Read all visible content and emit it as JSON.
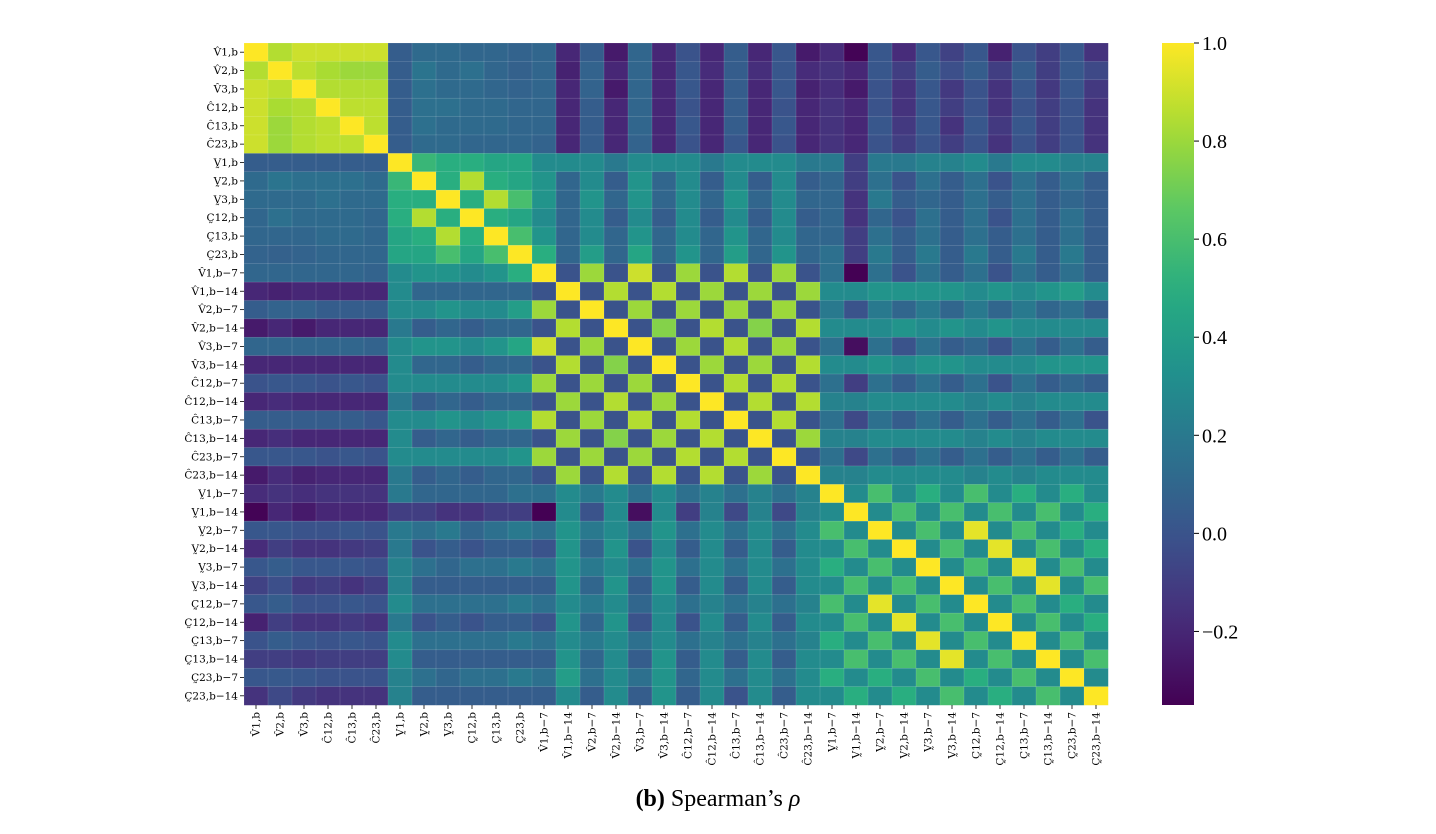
{
  "chart_data": {
    "type": "heatmap",
    "row_labels": [
      "V̂1,b",
      "V̂2,b",
      "V̂3,b",
      "Ĉ12,b",
      "Ĉ13,b",
      "Ĉ23,b",
      "V̰1,b",
      "V̰2,b",
      "V̰3,b",
      "C̰12,b",
      "C̰13,b",
      "C̰23,b",
      "V̂1,b−7",
      "V̂1,b−14",
      "V̂2,b−7",
      "V̂2,b−14",
      "V̂3,b−7",
      "V̂3,b−14",
      "Ĉ12,b−7",
      "Ĉ12,b−14",
      "Ĉ13,b−7",
      "Ĉ13,b−14",
      "Ĉ23,b−7",
      "Ĉ23,b−14",
      "V̰1,b−7",
      "V̰1,b−14",
      "V̰2,b−7",
      "V̰2,b−14",
      "V̰3,b−7",
      "V̰3,b−14",
      "C̰12,b−7",
      "C̰12,b−14",
      "C̰13,b−7",
      "C̰13,b−14",
      "C̰23,b−7",
      "C̰23,b−14"
    ],
    "col_labels": [
      "V̂1,b",
      "V̂2,b",
      "V̂3,b",
      "Ĉ12,b",
      "Ĉ13,b",
      "Ĉ23,b",
      "V̰1,b",
      "V̰2,b",
      "V̰3,b",
      "C̰12,b",
      "C̰13,b",
      "C̰23,b",
      "V̂1,b−7",
      "V̂1,b−14",
      "V̂2,b−7",
      "V̂2,b−14",
      "V̂3,b−7",
      "V̂3,b−14",
      "Ĉ12,b−7",
      "Ĉ12,b−14",
      "Ĉ13,b−7",
      "Ĉ13,b−14",
      "Ĉ23,b−7",
      "Ĉ23,b−14",
      "V̰1,b−7",
      "V̰1,b−14",
      "V̰2,b−7",
      "V̰2,b−14",
      "V̰3,b−7",
      "V̰3,b−14",
      "C̰12,b−7",
      "C̰12,b−14",
      "C̰13,b−7",
      "C̰13,b−14",
      "C̰23,b−7",
      "C̰23,b−14"
    ],
    "values": [
      [
        1.0,
        0.85,
        0.9,
        0.9,
        0.9,
        0.9,
        0.05,
        0.12,
        0.12,
        0.1,
        0.1,
        0.08,
        0.1,
        -0.2,
        0.05,
        -0.25,
        0.1,
        -0.2,
        0.0,
        -0.2,
        0.05,
        -0.2,
        0.02,
        -0.25,
        -0.18,
        -0.34,
        0.02,
        -0.18,
        0.02,
        -0.08,
        0.02,
        -0.22,
        0.0,
        -0.1,
        0.02,
        -0.15
      ],
      [
        0.85,
        1.0,
        0.87,
        0.83,
        0.8,
        0.8,
        0.05,
        0.17,
        0.12,
        0.15,
        0.1,
        0.07,
        0.1,
        -0.22,
        0.08,
        -0.2,
        0.1,
        -0.2,
        0.02,
        -0.18,
        0.05,
        -0.17,
        0.02,
        -0.18,
        -0.15,
        -0.2,
        0.02,
        -0.1,
        0.05,
        -0.02,
        0.05,
        -0.1,
        0.05,
        -0.1,
        0.03,
        -0.05
      ],
      [
        0.9,
        0.87,
        1.0,
        0.85,
        0.85,
        0.85,
        0.05,
        0.15,
        0.12,
        0.12,
        0.1,
        0.08,
        0.1,
        -0.2,
        0.08,
        -0.25,
        0.1,
        -0.2,
        0.02,
        -0.2,
        0.05,
        -0.2,
        0.02,
        -0.22,
        -0.17,
        -0.25,
        0.0,
        -0.15,
        0.02,
        -0.12,
        0.0,
        -0.15,
        0.02,
        -0.12,
        0.02,
        -0.12
      ],
      [
        0.9,
        0.83,
        0.85,
        1.0,
        0.87,
        0.87,
        0.05,
        0.15,
        0.15,
        0.12,
        0.12,
        0.1,
        0.1,
        -0.2,
        0.05,
        -0.2,
        0.1,
        -0.2,
        0.0,
        -0.2,
        0.05,
        -0.2,
        0.0,
        -0.2,
        -0.15,
        -0.2,
        0.0,
        -0.15,
        0.02,
        -0.1,
        0.0,
        -0.15,
        0.0,
        -0.1,
        0.0,
        -0.15
      ],
      [
        0.9,
        0.8,
        0.85,
        0.87,
        1.0,
        0.87,
        0.05,
        0.15,
        0.12,
        0.12,
        0.12,
        0.1,
        0.1,
        -0.2,
        0.05,
        -0.2,
        0.1,
        -0.2,
        0.02,
        -0.2,
        0.05,
        -0.2,
        0.02,
        -0.2,
        -0.15,
        -0.2,
        0.02,
        -0.12,
        0.02,
        -0.15,
        0.02,
        -0.12,
        0.02,
        -0.1,
        0.0,
        -0.15
      ],
      [
        0.9,
        0.8,
        0.85,
        0.87,
        0.87,
        1.0,
        0.05,
        0.12,
        0.12,
        0.1,
        0.1,
        0.1,
        0.08,
        -0.2,
        0.05,
        -0.2,
        0.08,
        -0.2,
        0.0,
        -0.2,
        0.02,
        -0.2,
        0.0,
        -0.2,
        -0.15,
        -0.2,
        0.0,
        -0.1,
        0.0,
        -0.1,
        0.0,
        -0.15,
        0.0,
        -0.1,
        0.0,
        -0.15
      ],
      [
        0.05,
        0.05,
        0.05,
        0.05,
        0.05,
        0.05,
        1.0,
        0.55,
        0.5,
        0.5,
        0.45,
        0.45,
        0.3,
        0.3,
        0.3,
        0.2,
        0.3,
        0.3,
        0.3,
        0.2,
        0.3,
        0.3,
        0.3,
        0.2,
        0.2,
        -0.1,
        0.2,
        0.2,
        0.25,
        0.25,
        0.3,
        0.2,
        0.3,
        0.3,
        0.25,
        0.25
      ],
      [
        0.12,
        0.17,
        0.15,
        0.15,
        0.15,
        0.12,
        0.55,
        1.0,
        0.5,
        0.85,
        0.5,
        0.45,
        0.35,
        0.1,
        0.3,
        0.05,
        0.35,
        0.1,
        0.3,
        0.05,
        0.3,
        0.05,
        0.3,
        0.05,
        0.1,
        -0.1,
        0.15,
        0.0,
        0.15,
        0.05,
        0.15,
        0.0,
        0.15,
        0.05,
        0.15,
        0.05
      ],
      [
        0.12,
        0.12,
        0.12,
        0.15,
        0.12,
        0.12,
        0.5,
        0.5,
        1.0,
        0.5,
        0.85,
        0.6,
        0.35,
        0.1,
        0.35,
        0.1,
        0.35,
        0.1,
        0.3,
        0.1,
        0.35,
        0.1,
        0.3,
        0.1,
        0.1,
        -0.15,
        0.2,
        0.05,
        0.1,
        0.05,
        0.15,
        0.05,
        0.15,
        0.05,
        0.1,
        0.05
      ],
      [
        0.1,
        0.15,
        0.12,
        0.12,
        0.12,
        0.1,
        0.5,
        0.85,
        0.5,
        1.0,
        0.5,
        0.45,
        0.3,
        0.1,
        0.3,
        0.05,
        0.3,
        0.05,
        0.3,
        0.05,
        0.3,
        0.05,
        0.3,
        0.05,
        0.1,
        -0.15,
        0.1,
        0.0,
        0.15,
        0.05,
        0.15,
        0.0,
        0.15,
        0.05,
        0.15,
        0.05
      ],
      [
        0.1,
        0.1,
        0.1,
        0.12,
        0.12,
        0.1,
        0.45,
        0.5,
        0.85,
        0.5,
        1.0,
        0.6,
        0.35,
        0.1,
        0.3,
        0.1,
        0.35,
        0.1,
        0.3,
        0.1,
        0.35,
        0.1,
        0.3,
        0.1,
        0.1,
        -0.1,
        0.15,
        0.05,
        0.15,
        0.05,
        0.15,
        0.05,
        0.15,
        0.05,
        0.15,
        0.05
      ],
      [
        0.08,
        0.07,
        0.08,
        0.1,
        0.1,
        0.1,
        0.45,
        0.45,
        0.6,
        0.45,
        0.6,
        1.0,
        0.5,
        0.1,
        0.4,
        0.1,
        0.45,
        0.1,
        0.35,
        0.1,
        0.4,
        0.1,
        0.35,
        0.1,
        0.15,
        -0.1,
        0.2,
        0.05,
        0.2,
        0.05,
        0.2,
        0.05,
        0.2,
        0.05,
        0.2,
        0.05
      ],
      [
        0.1,
        0.1,
        0.1,
        0.1,
        0.1,
        0.08,
        0.3,
        0.35,
        0.35,
        0.3,
        0.35,
        0.5,
        1.0,
        0.0,
        0.8,
        0.0,
        0.9,
        0.0,
        0.8,
        0.0,
        0.85,
        0.0,
        0.8,
        0.0,
        0.15,
        -0.35,
        0.15,
        0.0,
        0.15,
        0.05,
        0.15,
        0.0,
        0.15,
        0.05,
        0.15,
        0.05
      ],
      [
        -0.2,
        -0.22,
        -0.2,
        -0.2,
        -0.2,
        -0.2,
        0.3,
        0.1,
        0.1,
        0.1,
        0.1,
        0.1,
        0.0,
        1.0,
        0.0,
        0.85,
        0.0,
        0.85,
        0.0,
        0.8,
        0.0,
        0.8,
        0.0,
        0.8,
        0.3,
        0.3,
        0.35,
        0.35,
        0.35,
        0.35,
        0.3,
        0.35,
        0.3,
        0.35,
        0.4,
        0.3
      ],
      [
        0.05,
        0.08,
        0.08,
        0.05,
        0.05,
        0.05,
        0.3,
        0.3,
        0.35,
        0.3,
        0.3,
        0.4,
        0.8,
        0.0,
        1.0,
        0.0,
        0.8,
        0.0,
        0.8,
        0.0,
        0.8,
        0.0,
        0.8,
        0.0,
        0.2,
        0.0,
        0.2,
        0.1,
        0.2,
        0.1,
        0.2,
        0.1,
        0.2,
        0.1,
        0.15,
        0.05
      ],
      [
        -0.25,
        -0.2,
        -0.25,
        -0.2,
        -0.2,
        -0.2,
        0.2,
        0.05,
        0.1,
        0.05,
        0.1,
        0.1,
        0.0,
        0.85,
        0.0,
        1.0,
        0.0,
        0.75,
        0.0,
        0.85,
        0.0,
        0.75,
        0.0,
        0.85,
        0.3,
        0.3,
        0.3,
        0.35,
        0.3,
        0.35,
        0.3,
        0.35,
        0.3,
        0.3,
        0.3,
        0.3
      ],
      [
        0.1,
        0.1,
        0.1,
        0.1,
        0.1,
        0.08,
        0.3,
        0.35,
        0.35,
        0.3,
        0.35,
        0.45,
        0.9,
        0.0,
        0.8,
        0.0,
        1.0,
        0.0,
        0.8,
        0.0,
        0.85,
        0.0,
        0.8,
        0.0,
        0.15,
        -0.3,
        0.15,
        0.0,
        0.15,
        0.05,
        0.1,
        0.0,
        0.15,
        0.05,
        0.15,
        0.05
      ],
      [
        -0.2,
        -0.2,
        -0.2,
        -0.2,
        -0.2,
        -0.2,
        0.3,
        0.1,
        0.1,
        0.05,
        0.1,
        0.1,
        0.0,
        0.85,
        0.0,
        0.75,
        0.0,
        1.0,
        0.0,
        0.8,
        0.0,
        0.8,
        0.0,
        0.85,
        0.3,
        0.3,
        0.35,
        0.3,
        0.35,
        0.35,
        0.3,
        0.3,
        0.3,
        0.35,
        0.35,
        0.35
      ],
      [
        0.0,
        0.02,
        0.02,
        0.0,
        0.02,
        0.0,
        0.3,
        0.3,
        0.3,
        0.3,
        0.3,
        0.35,
        0.8,
        0.0,
        0.8,
        0.0,
        0.8,
        0.0,
        1.0,
        0.0,
        0.85,
        0.0,
        0.85,
        0.0,
        0.15,
        -0.1,
        0.15,
        0.05,
        0.15,
        0.05,
        0.15,
        0.0,
        0.15,
        0.05,
        0.1,
        0.05
      ],
      [
        -0.2,
        -0.18,
        -0.2,
        -0.2,
        -0.2,
        -0.2,
        0.2,
        0.05,
        0.1,
        0.05,
        0.1,
        0.1,
        0.0,
        0.8,
        0.0,
        0.85,
        0.0,
        0.8,
        0.0,
        1.0,
        0.0,
        0.85,
        0.0,
        0.85,
        0.25,
        0.25,
        0.3,
        0.3,
        0.3,
        0.3,
        0.25,
        0.3,
        0.25,
        0.3,
        0.3,
        0.3
      ],
      [
        0.05,
        0.05,
        0.05,
        0.05,
        0.05,
        0.02,
        0.3,
        0.3,
        0.35,
        0.3,
        0.35,
        0.4,
        0.85,
        0.0,
        0.8,
        0.0,
        0.85,
        0.0,
        0.85,
        0.0,
        1.0,
        0.0,
        0.85,
        0.0,
        0.15,
        -0.05,
        0.15,
        0.05,
        0.15,
        0.05,
        0.15,
        0.05,
        0.15,
        0.05,
        0.15,
        0.0
      ],
      [
        -0.2,
        -0.17,
        -0.2,
        -0.2,
        -0.2,
        -0.2,
        0.3,
        0.05,
        0.1,
        0.05,
        0.1,
        0.1,
        0.0,
        0.8,
        0.0,
        0.75,
        0.0,
        0.8,
        0.0,
        0.85,
        0.0,
        1.0,
        0.0,
        0.8,
        0.25,
        0.25,
        0.3,
        0.3,
        0.3,
        0.3,
        0.25,
        0.3,
        0.25,
        0.3,
        0.3,
        0.3
      ],
      [
        0.02,
        0.02,
        0.02,
        0.0,
        0.02,
        0.0,
        0.3,
        0.3,
        0.3,
        0.3,
        0.3,
        0.35,
        0.8,
        0.0,
        0.8,
        0.0,
        0.8,
        0.0,
        0.85,
        0.0,
        0.85,
        0.0,
        1.0,
        0.0,
        0.15,
        -0.05,
        0.15,
        0.05,
        0.15,
        0.05,
        0.15,
        0.05,
        0.15,
        0.05,
        0.15,
        0.05
      ],
      [
        -0.25,
        -0.18,
        -0.22,
        -0.2,
        -0.2,
        -0.2,
        0.2,
        0.05,
        0.1,
        0.05,
        0.1,
        0.1,
        0.0,
        0.8,
        0.0,
        0.85,
        0.0,
        0.85,
        0.0,
        0.85,
        0.0,
        0.8,
        0.0,
        1.0,
        0.25,
        0.25,
        0.3,
        0.3,
        0.3,
        0.3,
        0.25,
        0.3,
        0.25,
        0.3,
        0.3,
        0.3
      ],
      [
        -0.18,
        -0.15,
        -0.17,
        -0.15,
        -0.15,
        -0.15,
        0.2,
        0.1,
        0.1,
        0.1,
        0.1,
        0.15,
        0.15,
        0.3,
        0.2,
        0.3,
        0.15,
        0.3,
        0.15,
        0.25,
        0.15,
        0.25,
        0.15,
        0.25,
        1.0,
        0.3,
        0.6,
        0.3,
        0.5,
        0.3,
        0.6,
        0.3,
        0.5,
        0.3,
        0.5,
        0.3
      ],
      [
        -0.34,
        -0.2,
        -0.25,
        -0.2,
        -0.2,
        -0.2,
        -0.1,
        -0.1,
        -0.15,
        -0.15,
        -0.1,
        -0.1,
        -0.35,
        0.3,
        0.0,
        0.3,
        -0.3,
        0.3,
        -0.1,
        0.25,
        -0.05,
        0.25,
        -0.05,
        0.25,
        0.3,
        1.0,
        0.3,
        0.6,
        0.3,
        0.6,
        0.3,
        0.6,
        0.3,
        0.6,
        0.3,
        0.5
      ],
      [
        0.02,
        0.02,
        0.0,
        0.0,
        0.02,
        0.0,
        0.2,
        0.15,
        0.2,
        0.1,
        0.15,
        0.2,
        0.15,
        0.35,
        0.2,
        0.3,
        0.15,
        0.35,
        0.15,
        0.3,
        0.15,
        0.3,
        0.15,
        0.3,
        0.6,
        0.3,
        1.0,
        0.3,
        0.6,
        0.3,
        0.95,
        0.3,
        0.6,
        0.3,
        0.5,
        0.3
      ],
      [
        -0.18,
        -0.1,
        -0.15,
        -0.15,
        -0.12,
        -0.1,
        0.2,
        0.0,
        0.05,
        0.0,
        0.05,
        0.05,
        0.0,
        0.35,
        0.1,
        0.35,
        0.0,
        0.3,
        0.05,
        0.3,
        0.05,
        0.3,
        0.05,
        0.3,
        0.3,
        0.6,
        0.3,
        1.0,
        0.3,
        0.6,
        0.3,
        0.95,
        0.3,
        0.6,
        0.3,
        0.5
      ],
      [
        0.02,
        0.05,
        0.02,
        0.02,
        0.02,
        0.0,
        0.25,
        0.15,
        0.1,
        0.15,
        0.15,
        0.2,
        0.15,
        0.35,
        0.2,
        0.3,
        0.15,
        0.35,
        0.15,
        0.3,
        0.15,
        0.3,
        0.15,
        0.3,
        0.5,
        0.3,
        0.6,
        0.3,
        1.0,
        0.3,
        0.6,
        0.3,
        0.95,
        0.3,
        0.6,
        0.3
      ],
      [
        -0.08,
        -0.02,
        -0.12,
        -0.1,
        -0.15,
        -0.1,
        0.25,
        0.05,
        0.05,
        0.05,
        0.05,
        0.05,
        0.05,
        0.35,
        0.1,
        0.35,
        0.05,
        0.35,
        0.05,
        0.3,
        0.05,
        0.3,
        0.05,
        0.3,
        0.3,
        0.6,
        0.3,
        0.6,
        0.3,
        1.0,
        0.3,
        0.6,
        0.3,
        0.95,
        0.3,
        0.6
      ],
      [
        0.02,
        0.05,
        0.0,
        0.0,
        0.02,
        0.0,
        0.3,
        0.15,
        0.15,
        0.15,
        0.15,
        0.2,
        0.15,
        0.3,
        0.2,
        0.3,
        0.1,
        0.3,
        0.15,
        0.25,
        0.15,
        0.25,
        0.15,
        0.25,
        0.6,
        0.3,
        0.95,
        0.3,
        0.6,
        0.3,
        1.0,
        0.3,
        0.6,
        0.3,
        0.5,
        0.3
      ],
      [
        -0.22,
        -0.1,
        -0.15,
        -0.15,
        -0.12,
        -0.15,
        0.2,
        0.0,
        0.05,
        0.0,
        0.05,
        0.05,
        0.0,
        0.35,
        0.1,
        0.35,
        0.0,
        0.3,
        0.0,
        0.3,
        0.05,
        0.3,
        0.05,
        0.3,
        0.3,
        0.6,
        0.3,
        0.95,
        0.3,
        0.6,
        0.3,
        1.0,
        0.3,
        0.6,
        0.3,
        0.5
      ],
      [
        0.0,
        0.05,
        0.02,
        0.0,
        0.02,
        0.0,
        0.3,
        0.15,
        0.15,
        0.15,
        0.15,
        0.2,
        0.15,
        0.3,
        0.2,
        0.3,
        0.15,
        0.3,
        0.15,
        0.25,
        0.15,
        0.25,
        0.15,
        0.25,
        0.5,
        0.3,
        0.6,
        0.3,
        0.95,
        0.3,
        0.6,
        0.3,
        1.0,
        0.3,
        0.6,
        0.3
      ],
      [
        -0.1,
        -0.1,
        -0.12,
        -0.1,
        -0.1,
        -0.1,
        0.3,
        0.05,
        0.05,
        0.05,
        0.05,
        0.05,
        0.05,
        0.35,
        0.1,
        0.3,
        0.05,
        0.35,
        0.05,
        0.3,
        0.05,
        0.3,
        0.05,
        0.3,
        0.3,
        0.6,
        0.3,
        0.6,
        0.3,
        0.95,
        0.3,
        0.6,
        0.3,
        1.0,
        0.3,
        0.6
      ],
      [
        0.02,
        0.03,
        0.02,
        0.0,
        0.0,
        0.0,
        0.25,
        0.15,
        0.1,
        0.15,
        0.15,
        0.2,
        0.15,
        0.4,
        0.15,
        0.3,
        0.15,
        0.35,
        0.1,
        0.3,
        0.15,
        0.3,
        0.15,
        0.3,
        0.5,
        0.3,
        0.5,
        0.3,
        0.6,
        0.3,
        0.5,
        0.3,
        0.6,
        0.3,
        1.0,
        0.3
      ],
      [
        -0.15,
        -0.05,
        -0.12,
        -0.15,
        -0.15,
        -0.15,
        0.25,
        0.05,
        0.05,
        0.05,
        0.05,
        0.05,
        0.05,
        0.3,
        0.05,
        0.3,
        0.05,
        0.35,
        0.05,
        0.3,
        0.0,
        0.3,
        0.05,
        0.3,
        0.3,
        0.5,
        0.3,
        0.5,
        0.3,
        0.6,
        0.3,
        0.5,
        0.3,
        0.6,
        0.3,
        1.0
      ]
    ],
    "colorscale": "viridis",
    "colorbar": {
      "vmin": -0.35,
      "vmax": 1.0,
      "ticks": [
        1.0,
        0.8,
        0.6,
        0.4,
        0.2,
        0.0,
        -0.2
      ],
      "tick_labels": [
        "1.0",
        "0.8",
        "0.6",
        "0.4",
        "0.2",
        "0.0",
        "−0.2"
      ]
    }
  },
  "caption": {
    "tag": "(b)",
    "text": "Spearman’s",
    "symbol": "ρ"
  }
}
